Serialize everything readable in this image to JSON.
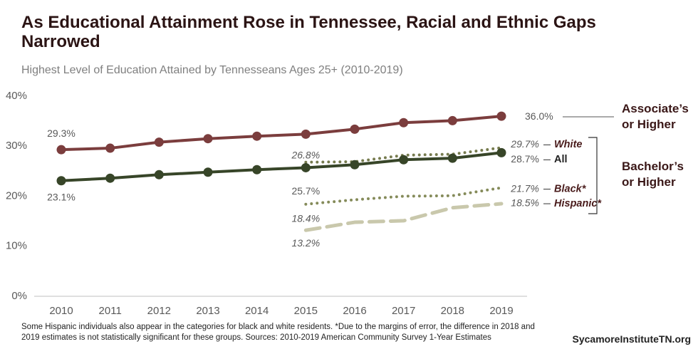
{
  "chart_data": {
    "type": "line",
    "title": "As Educational Attainment Rose in Tennessee, Racial and Ethnic Gaps Narrowed",
    "subtitle": "Highest Level of Education Attained by Tennesseans Ages 25+ (2010-2019)",
    "categories": [
      "2010",
      "2011",
      "2012",
      "2013",
      "2014",
      "2015",
      "2016",
      "2017",
      "2018",
      "2019"
    ],
    "ylim": [
      0,
      40
    ],
    "yticks": [
      {
        "value": 0,
        "label": "0%"
      },
      {
        "value": 10,
        "label": "10%"
      },
      {
        "value": 20,
        "label": "20%"
      },
      {
        "value": 30,
        "label": "30%"
      },
      {
        "value": 40,
        "label": "40%"
      }
    ],
    "groups": [
      "Associate’s or Higher",
      "Bachelor’s or Higher"
    ],
    "series": [
      {
        "color": "#7b3d3d",
        "style": "solid",
        "markers": true,
        "values": [
          29.3,
          29.6,
          30.8,
          31.5,
          32.0,
          32.4,
          33.4,
          34.7,
          35.1,
          36.0
        ],
        "value_labels": [
          "29.3%",
          null,
          null,
          null,
          null,
          null,
          null,
          null,
          null,
          "36.0%"
        ]
      },
      {
        "name": "White",
        "color": "#767b4e",
        "style": "dotted",
        "markers": false,
        "values": [
          null,
          null,
          null,
          null,
          null,
          26.8,
          26.9,
          28.2,
          28.4,
          29.7
        ],
        "value_labels": [
          null,
          null,
          null,
          null,
          null,
          "26.8%",
          null,
          null,
          null,
          "29.7%"
        ]
      },
      {
        "name": "All",
        "color": "#374528",
        "style": "solid",
        "markers": true,
        "values": [
          23.1,
          23.6,
          24.3,
          24.8,
          25.3,
          25.7,
          26.3,
          27.3,
          27.6,
          28.7
        ],
        "value_labels": [
          "23.1%",
          null,
          null,
          null,
          null,
          "25.7%",
          null,
          null,
          null,
          "28.7%"
        ]
      },
      {
        "name": "Black*",
        "color": "#858b5a",
        "style": "dotted",
        "markers": false,
        "values": [
          null,
          null,
          null,
          null,
          null,
          18.4,
          19.3,
          20.0,
          20.1,
          21.7
        ],
        "value_labels": [
          null,
          null,
          null,
          null,
          null,
          "18.4%",
          null,
          null,
          null,
          "21.7%"
        ]
      },
      {
        "name": "Hispanic*",
        "color": "#c9c8ac",
        "style": "dashed",
        "markers": false,
        "values": [
          null,
          null,
          null,
          null,
          null,
          13.2,
          14.8,
          15.1,
          17.7,
          18.5
        ],
        "value_labels": [
          null,
          null,
          null,
          null,
          null,
          "13.2%",
          null,
          null,
          null,
          "18.5%"
        ]
      }
    ],
    "note": "Some Hispanic individuals also appear in the categories for black and white residents. *Due to the margins of error, the difference in 2018 and 2019 estimates is not statistically significant for these groups. Sources: 2010-2019 American Community Survey 1-Year Estimates",
    "source": "SycamoreInstituteTN.org"
  }
}
